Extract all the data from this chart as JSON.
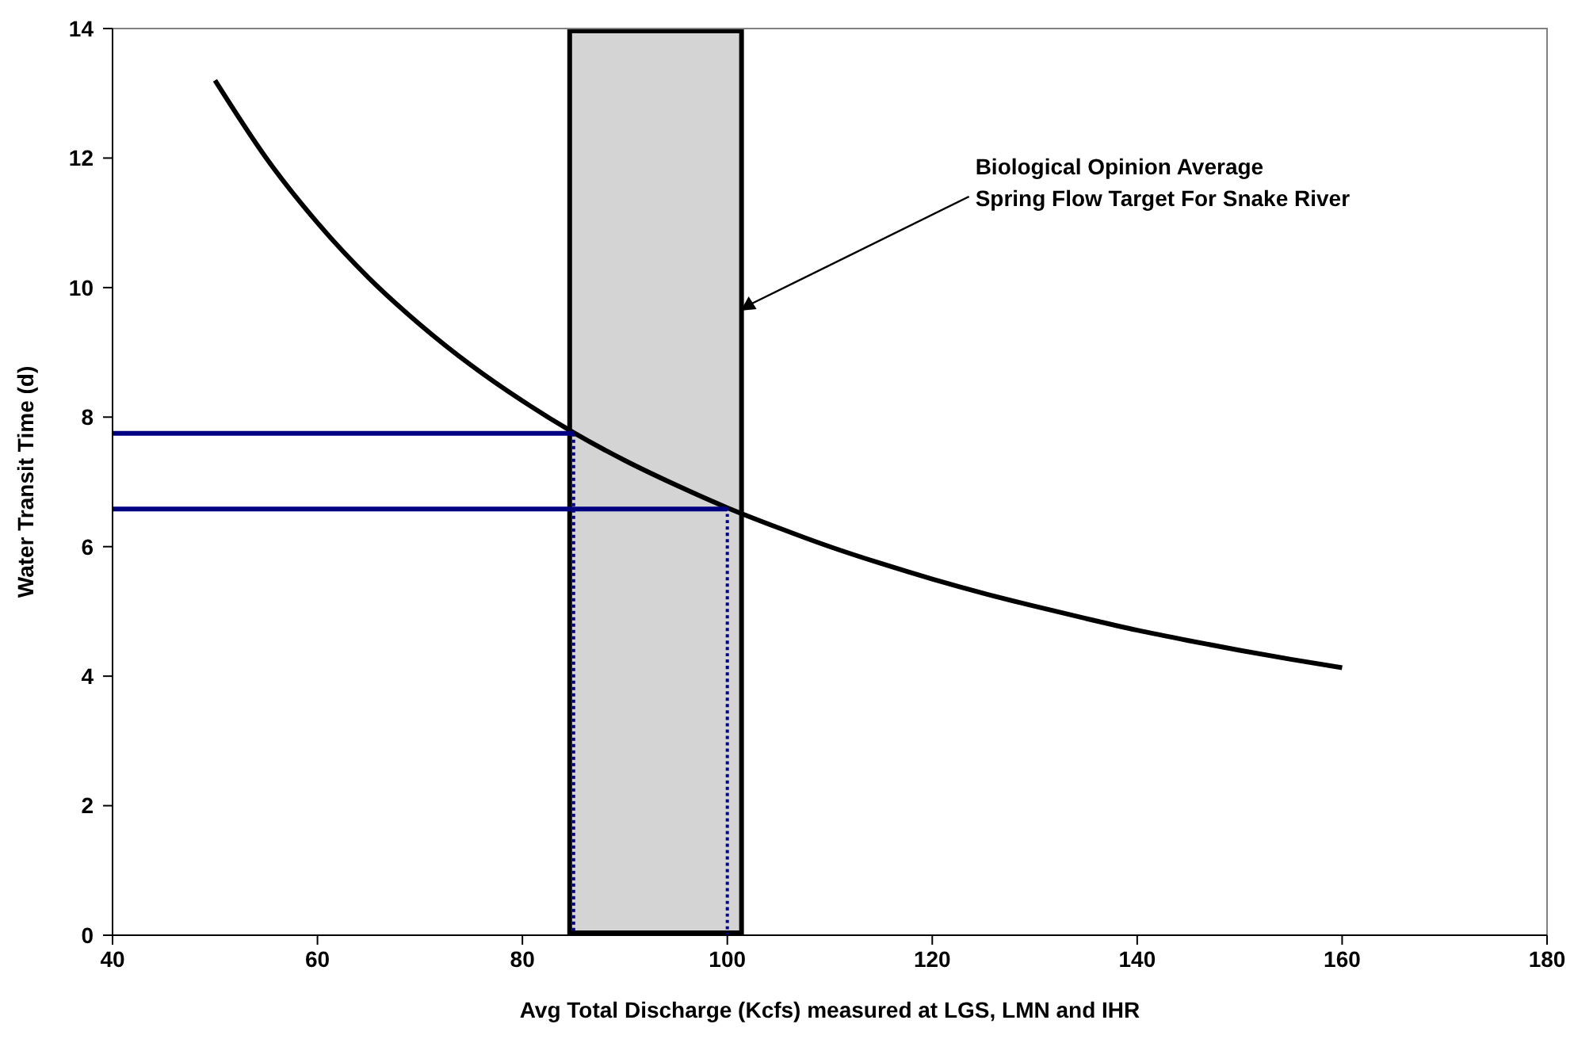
{
  "chart_data": {
    "type": "line",
    "xlabel": "Avg Total Discharge (Kcfs) measured at LGS, LMN and IHR",
    "ylabel": "Water Transit Time (d)",
    "xlim": [
      40,
      180
    ],
    "xticks": [
      40,
      60,
      80,
      100,
      120,
      140,
      160,
      180
    ],
    "ylim": [
      0,
      14
    ],
    "yticks": [
      0,
      2,
      4,
      6,
      8,
      10,
      12,
      14
    ],
    "grid": false,
    "series": [
      {
        "color": "#000000",
        "line_style": "solid",
        "x": [
          50,
          55,
          60,
          65,
          70,
          75,
          80,
          85,
          90,
          95,
          100,
          105,
          110,
          115,
          120,
          125,
          130,
          135,
          140,
          145,
          150,
          155,
          160
        ],
        "values": [
          13.2,
          12.0,
          11.0,
          10.15,
          9.43,
          8.8,
          8.25,
          7.76,
          7.33,
          6.95,
          6.6,
          6.29,
          6.0,
          5.74,
          5.5,
          5.28,
          5.08,
          4.89,
          4.71,
          4.55,
          4.4,
          4.26,
          4.13
        ]
      },
      {
        "color": "#000080",
        "line_style": "solid",
        "x": [
          40,
          85
        ],
        "values": [
          7.75,
          7.75
        ]
      },
      {
        "color": "#000080",
        "line_style": "solid",
        "x": [
          40,
          100
        ],
        "values": [
          6.58,
          6.58
        ]
      },
      {
        "color": "#000080",
        "line_style": "dotted",
        "x": [
          85,
          85
        ],
        "values": [
          7.75,
          0
        ]
      },
      {
        "color": "#000080",
        "line_style": "dotted",
        "x": [
          85,
          100,
          100
        ],
        "values": [
          6.58,
          6.58,
          0
        ]
      }
    ],
    "bands": [
      {
        "axis": "x",
        "from": 85,
        "to": 101,
        "color": "#d4d4d4",
        "label": "Biological Opinion Average\nSpring Flow Target For Snake River"
      }
    ]
  }
}
